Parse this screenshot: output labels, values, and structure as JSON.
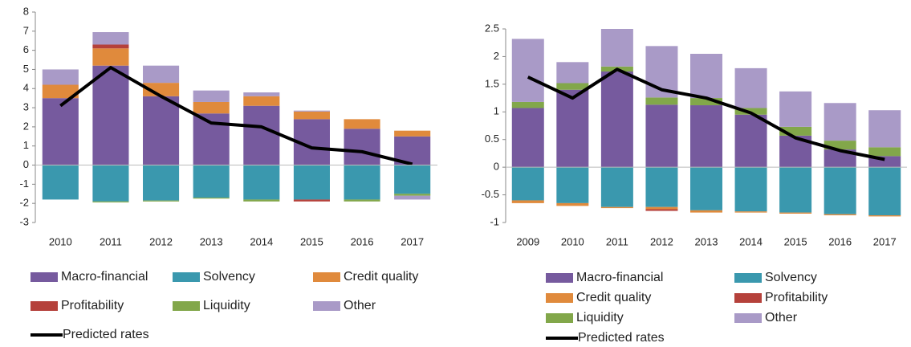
{
  "chart_data": [
    {
      "type": "bar",
      "stacked": true,
      "categories": [
        "2010",
        "2011",
        "2012",
        "2013",
        "2014",
        "2015",
        "2016",
        "2017"
      ],
      "ylim": [
        -3,
        8
      ],
      "yticks": [
        -3,
        -2,
        -1,
        0,
        1,
        2,
        3,
        4,
        5,
        6,
        7,
        8
      ],
      "series": [
        {
          "name": "Macro-financial",
          "color": "#765a9e",
          "values": [
            3.5,
            5.2,
            3.6,
            2.7,
            3.1,
            2.4,
            1.9,
            1.5
          ]
        },
        {
          "name": "Solvency",
          "color": "#3a98ae",
          "values": [
            -1.8,
            -1.9,
            -1.85,
            -1.7,
            -1.8,
            -1.8,
            -1.8,
            -1.5
          ]
        },
        {
          "name": "Credit quality",
          "color": "#e08a3c",
          "values": [
            0.7,
            0.9,
            0.7,
            0.6,
            0.5,
            0.4,
            0.5,
            0.3
          ]
        },
        {
          "name": "Profitability",
          "color": "#b5413b",
          "values": [
            0,
            0.2,
            0,
            0,
            0,
            -0.1,
            0,
            0
          ]
        },
        {
          "name": "Liquidity",
          "color": "#82a74a",
          "values": [
            0,
            -0.05,
            -0.05,
            -0.05,
            -0.1,
            0,
            -0.1,
            -0.1
          ]
        },
        {
          "name": "Other",
          "color": "#a99ac7",
          "values": [
            0.8,
            0.65,
            0.9,
            0.6,
            0.2,
            0.05,
            0,
            -0.2
          ]
        },
        {
          "name": "Predicted rates",
          "color": "#000000",
          "kind": "line",
          "values": [
            3.1,
            5.1,
            3.6,
            2.2,
            2.0,
            0.9,
            0.7,
            0.05
          ]
        }
      ]
    },
    {
      "type": "bar",
      "stacked": true,
      "categories": [
        "2009",
        "2010",
        "2011",
        "2012",
        "2013",
        "2014",
        "2015",
        "2016",
        "2017"
      ],
      "ylim": [
        -1,
        2.5
      ],
      "yticks": [
        -1,
        -0.5,
        0,
        0.5,
        1,
        1.5,
        2,
        2.5
      ],
      "series": [
        {
          "name": "Macro-financial",
          "color": "#765a9e",
          "values": [
            1.07,
            1.4,
            1.73,
            1.13,
            1.12,
            0.95,
            0.57,
            0.32,
            0.2
          ]
        },
        {
          "name": "Solvency",
          "color": "#3a98ae",
          "values": [
            -0.6,
            -0.65,
            -0.72,
            -0.72,
            -0.78,
            -0.8,
            -0.82,
            -0.85,
            -0.87
          ]
        },
        {
          "name": "Credit quality",
          "color": "#e08a3c",
          "values": [
            -0.05,
            -0.05,
            -0.02,
            -0.04,
            -0.04,
            -0.02,
            -0.02,
            -0.02,
            -0.02
          ]
        },
        {
          "name": "Profitability",
          "color": "#b5413b",
          "values": [
            0,
            0,
            0,
            -0.03,
            0,
            0,
            0,
            0,
            0
          ]
        },
        {
          "name": "Liquidity",
          "color": "#82a74a",
          "values": [
            0.11,
            0.12,
            0.09,
            0.13,
            0.13,
            0.12,
            0.16,
            0.16,
            0.16
          ]
        },
        {
          "name": "Other",
          "color": "#a99ac7",
          "values": [
            1.14,
            0.38,
            0.68,
            0.93,
            0.8,
            0.72,
            0.64,
            0.68,
            0.67
          ]
        },
        {
          "name": "Predicted rates",
          "color": "#000000",
          "kind": "line",
          "values": [
            1.63,
            1.25,
            1.77,
            1.4,
            1.25,
            0.98,
            0.53,
            0.3,
            0.14
          ]
        }
      ]
    }
  ]
}
